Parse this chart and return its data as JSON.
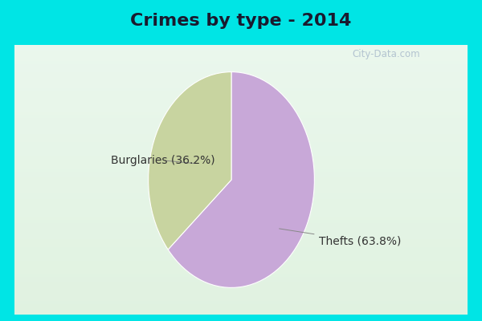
{
  "title": "Crimes by type - 2014",
  "slices": [
    {
      "label": "Thefts",
      "pct": 63.8,
      "color": "#c8a8d8"
    },
    {
      "label": "Burglaries",
      "pct": 36.2,
      "color": "#c8d4a0"
    }
  ],
  "cyan_border": "#00e5e5",
  "inner_bg_top": "#e8f5f0",
  "inner_bg_bottom": "#d8f0e0",
  "title_fontsize": 16,
  "label_fontsize": 10,
  "watermark": "City-Data.com",
  "title_color": "#1a1a2e"
}
